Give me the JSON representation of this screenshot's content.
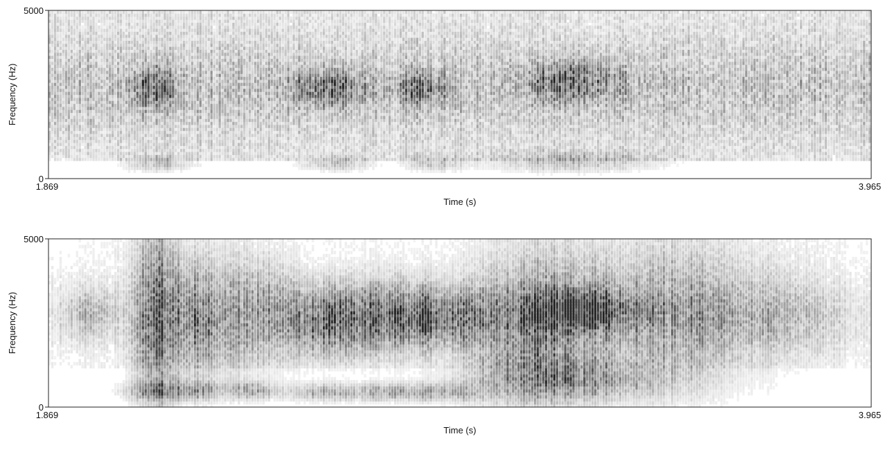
{
  "chart_data": [
    {
      "type": "heatmap",
      "title": "",
      "xlabel": "Time (s)",
      "ylabel": "Frequency (Hz)",
      "xlim": [
        1.869,
        3.965
      ],
      "ylim": [
        0,
        5000
      ],
      "x_tick_labels": [
        "1.869",
        "3.965"
      ],
      "y_tick_labels": [
        "0",
        "5000"
      ],
      "x_ticks": [
        1.869,
        3.965
      ],
      "y_ticks": [
        0,
        5000
      ],
      "colormap": "grayscale-inverted",
      "background": "#ffffff",
      "noise_level": 0.38,
      "noise_min_freq": 500,
      "dark_regions": [
        {
          "t": 2.14,
          "f": 2700,
          "dt": 0.04,
          "df": 400,
          "intensity": 0.55
        },
        {
          "t": 2.58,
          "f": 2700,
          "dt": 0.06,
          "df": 350,
          "intensity": 0.6
        },
        {
          "t": 2.82,
          "f": 2700,
          "dt": 0.05,
          "df": 300,
          "intensity": 0.45
        },
        {
          "t": 3.2,
          "f": 2900,
          "dt": 0.08,
          "df": 400,
          "intensity": 0.55
        },
        {
          "t": 2.15,
          "f": 450,
          "dt": 0.06,
          "df": 150,
          "intensity": 0.35
        },
        {
          "t": 2.6,
          "f": 450,
          "dt": 0.06,
          "df": 150,
          "intensity": 0.35
        },
        {
          "t": 2.85,
          "f": 450,
          "dt": 0.05,
          "df": 150,
          "intensity": 0.3
        },
        {
          "t": 3.2,
          "f": 500,
          "dt": 0.15,
          "df": 200,
          "intensity": 0.35
        }
      ]
    },
    {
      "type": "heatmap",
      "title": "",
      "xlabel": "Time (s)",
      "ylabel": "Frequency (Hz)",
      "xlim": [
        1.869,
        3.965
      ],
      "ylim": [
        0,
        5000
      ],
      "x_tick_labels": [
        "1.869",
        "3.965"
      ],
      "y_tick_labels": [
        "0",
        "5000"
      ],
      "x_ticks": [
        1.869,
        3.965
      ],
      "y_ticks": [
        0,
        5000
      ],
      "colormap": "grayscale-inverted",
      "background": "#ffffff",
      "noise_level": 0.12,
      "noise_min_freq": 1200,
      "dark_regions": [
        {
          "t": 1.97,
          "f": 2800,
          "dt": 0.05,
          "df": 500,
          "intensity": 0.3
        },
        {
          "t": 2.14,
          "f": 2700,
          "dt": 0.04,
          "df": 1800,
          "intensity": 0.75
        },
        {
          "t": 2.24,
          "f": 2600,
          "dt": 0.04,
          "df": 1200,
          "intensity": 0.5
        },
        {
          "t": 2.34,
          "f": 2700,
          "dt": 0.05,
          "df": 1200,
          "intensity": 0.45
        },
        {
          "t": 2.45,
          "f": 2800,
          "dt": 0.04,
          "df": 1000,
          "intensity": 0.35
        },
        {
          "t": 2.58,
          "f": 2600,
          "dt": 0.07,
          "df": 700,
          "intensity": 0.75
        },
        {
          "t": 2.72,
          "f": 2700,
          "dt": 0.06,
          "df": 700,
          "intensity": 0.55
        },
        {
          "t": 2.82,
          "f": 2700,
          "dt": 0.05,
          "df": 600,
          "intensity": 0.65
        },
        {
          "t": 2.93,
          "f": 2700,
          "dt": 0.05,
          "df": 600,
          "intensity": 0.5
        },
        {
          "t": 3.1,
          "f": 2300,
          "dt": 0.1,
          "df": 1500,
          "intensity": 0.55
        },
        {
          "t": 3.22,
          "f": 2900,
          "dt": 0.1,
          "df": 400,
          "intensity": 0.75
        },
        {
          "t": 3.45,
          "f": 2800,
          "dt": 0.18,
          "df": 1500,
          "intensity": 0.4
        },
        {
          "t": 3.7,
          "f": 2700,
          "dt": 0.15,
          "df": 700,
          "intensity": 0.2
        },
        {
          "t": 2.14,
          "f": 500,
          "dt": 0.05,
          "df": 180,
          "intensity": 0.5
        },
        {
          "t": 2.25,
          "f": 500,
          "dt": 0.04,
          "df": 180,
          "intensity": 0.45
        },
        {
          "t": 2.38,
          "f": 500,
          "dt": 0.05,
          "df": 180,
          "intensity": 0.4
        },
        {
          "t": 2.58,
          "f": 450,
          "dt": 0.07,
          "df": 180,
          "intensity": 0.45
        },
        {
          "t": 2.72,
          "f": 450,
          "dt": 0.04,
          "df": 180,
          "intensity": 0.35
        },
        {
          "t": 2.82,
          "f": 450,
          "dt": 0.05,
          "df": 180,
          "intensity": 0.45
        },
        {
          "t": 2.92,
          "f": 450,
          "dt": 0.04,
          "df": 180,
          "intensity": 0.3
        },
        {
          "t": 3.2,
          "f": 800,
          "dt": 0.18,
          "df": 400,
          "intensity": 0.45
        }
      ]
    }
  ]
}
